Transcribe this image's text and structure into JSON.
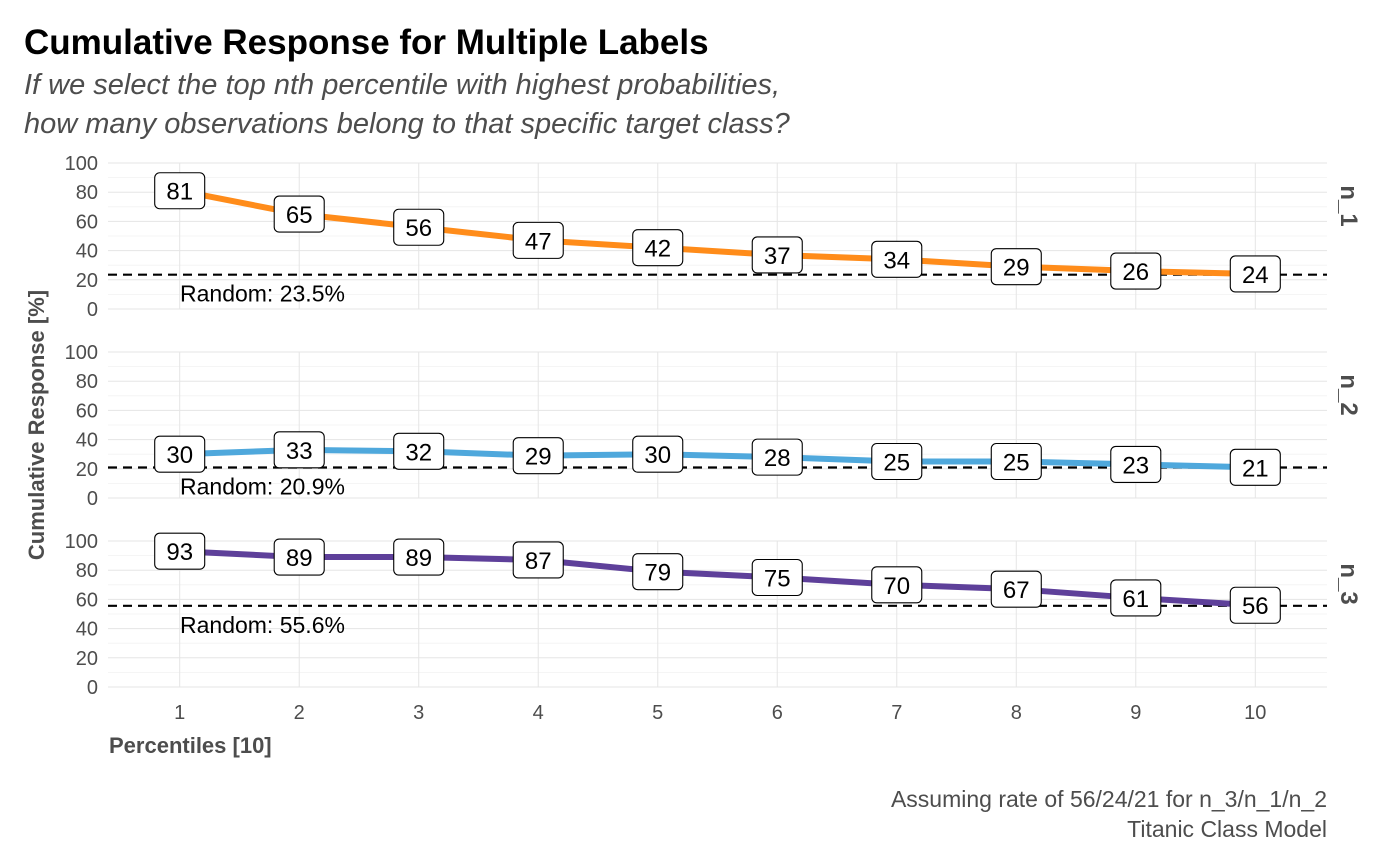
{
  "chart_data": {
    "type": "line",
    "title": "Cumulative Response for Multiple Labels",
    "subtitle_lines": [
      "If we select the top nth percentile with highest probabilities,",
      "how many observations belong to that specific target class?"
    ],
    "xlabel": "Percentiles [10]",
    "ylabel": "Cumulative Response [%]",
    "x": [
      1,
      2,
      3,
      4,
      5,
      6,
      7,
      8,
      9,
      10
    ],
    "xlim": [
      0.4,
      10.6
    ],
    "ylim": [
      0,
      100
    ],
    "yticks": [
      0,
      20,
      40,
      60,
      80,
      100
    ],
    "grid": true,
    "legend": "none",
    "panels": [
      {
        "name": "n_1",
        "color": "#ff8c1a",
        "values": [
          81,
          65,
          56,
          47,
          42,
          37,
          34,
          29,
          26,
          24
        ],
        "random_rate": 23.5,
        "random_label": "Random: 23.5%"
      },
      {
        "name": "n_2",
        "color": "#4fa8dc",
        "values": [
          30,
          33,
          32,
          29,
          30,
          28,
          25,
          25,
          23,
          21
        ],
        "random_rate": 20.9,
        "random_label": "Random: 20.9%"
      },
      {
        "name": "n_3",
        "color": "#5e409a",
        "values": [
          93,
          89,
          89,
          87,
          79,
          75,
          70,
          67,
          61,
          56
        ],
        "random_rate": 55.6,
        "random_label": "Random: 55.6%"
      }
    ],
    "caption_lines": [
      "Assuming rate of 56/24/21 for n_3/n_1/n_2",
      "Titanic Class Model"
    ]
  }
}
